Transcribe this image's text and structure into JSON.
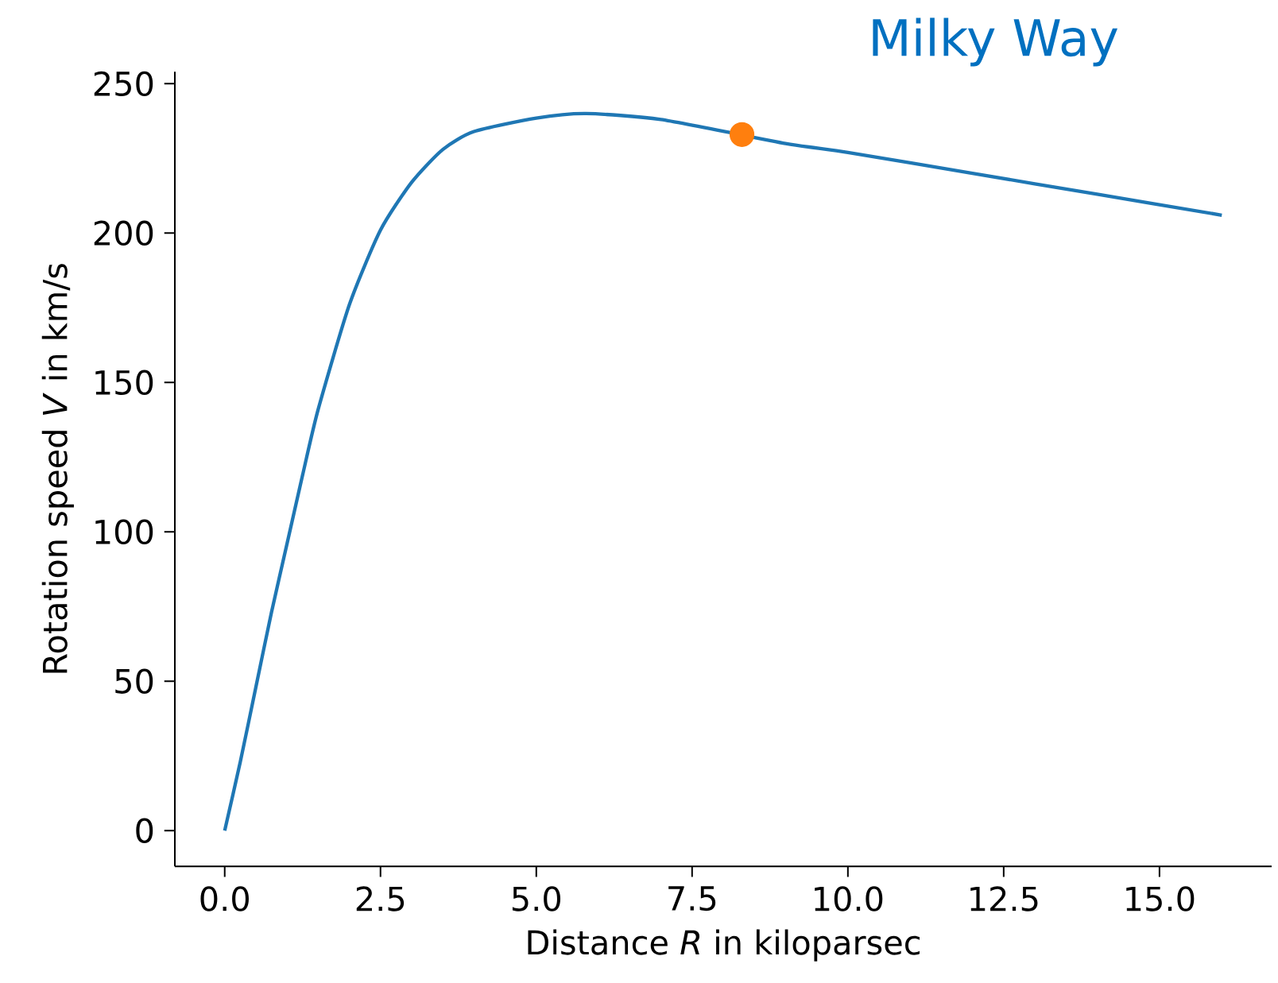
{
  "chart_data": {
    "type": "line",
    "title": "Milky Way",
    "xlabel": "Distance *R* in kiloparsec",
    "ylabel": "Rotation speed *V* in km/s",
    "xlim": [
      -0.8,
      16.8
    ],
    "ylim": [
      -12,
      254
    ],
    "xticks": [
      {
        "value": 0,
        "label": "0.0"
      },
      {
        "value": 2.5,
        "label": "2.5"
      },
      {
        "value": 5,
        "label": "5.0"
      },
      {
        "value": 7.5,
        "label": "7.5"
      },
      {
        "value": 10,
        "label": "10.0"
      },
      {
        "value": 12.5,
        "label": "12.5"
      },
      {
        "value": 15,
        "label": "15.0"
      }
    ],
    "yticks": [
      0,
      50,
      100,
      150,
      200,
      250
    ],
    "series": [
      {
        "color": "#1f77b4",
        "x": [
          0,
          0.25,
          0.5,
          0.75,
          1,
          1.25,
          1.5,
          2,
          2.5,
          3,
          3.5,
          4,
          5,
          5.8,
          7,
          9,
          10,
          12,
          14,
          16
        ],
        "values": [
          0,
          23,
          48,
          73,
          96,
          119,
          141,
          176,
          201,
          217,
          228,
          234,
          238.5,
          240,
          238,
          230,
          227,
          220,
          213,
          206
        ]
      },
      {
        "type": "scatter",
        "color": "#ff7f0e",
        "marker": "circle",
        "x": [
          8.3
        ],
        "values": [
          233
        ]
      }
    ]
  }
}
